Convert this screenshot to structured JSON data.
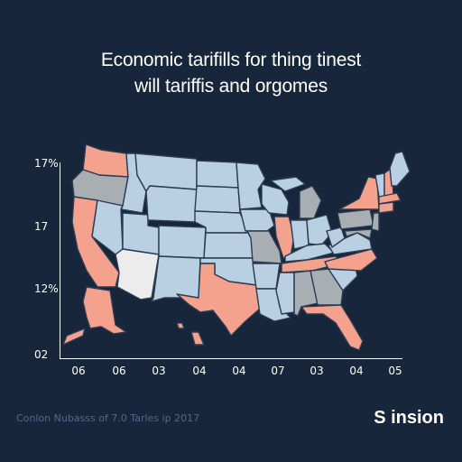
{
  "title": {
    "line1": "Economic tarifills for thing tinest",
    "line2": "will tariffis and orgomes"
  },
  "y_ticks": [
    "17%",
    "17",
    "12%",
    "02"
  ],
  "x_ticks": [
    "06",
    "06",
    "03",
    "04",
    "04",
    "07",
    "03",
    "04",
    "05"
  ],
  "footer_note": "Conlon Nubasss of 7.0 Tarles ip 2017",
  "brand": "S insion",
  "legend_colors": {
    "salmon": "#f4a18d",
    "light_blue": "#b8d0e2",
    "gray": "#a9aeb3",
    "white": "#ececec",
    "border": "#2a3b52"
  }
}
